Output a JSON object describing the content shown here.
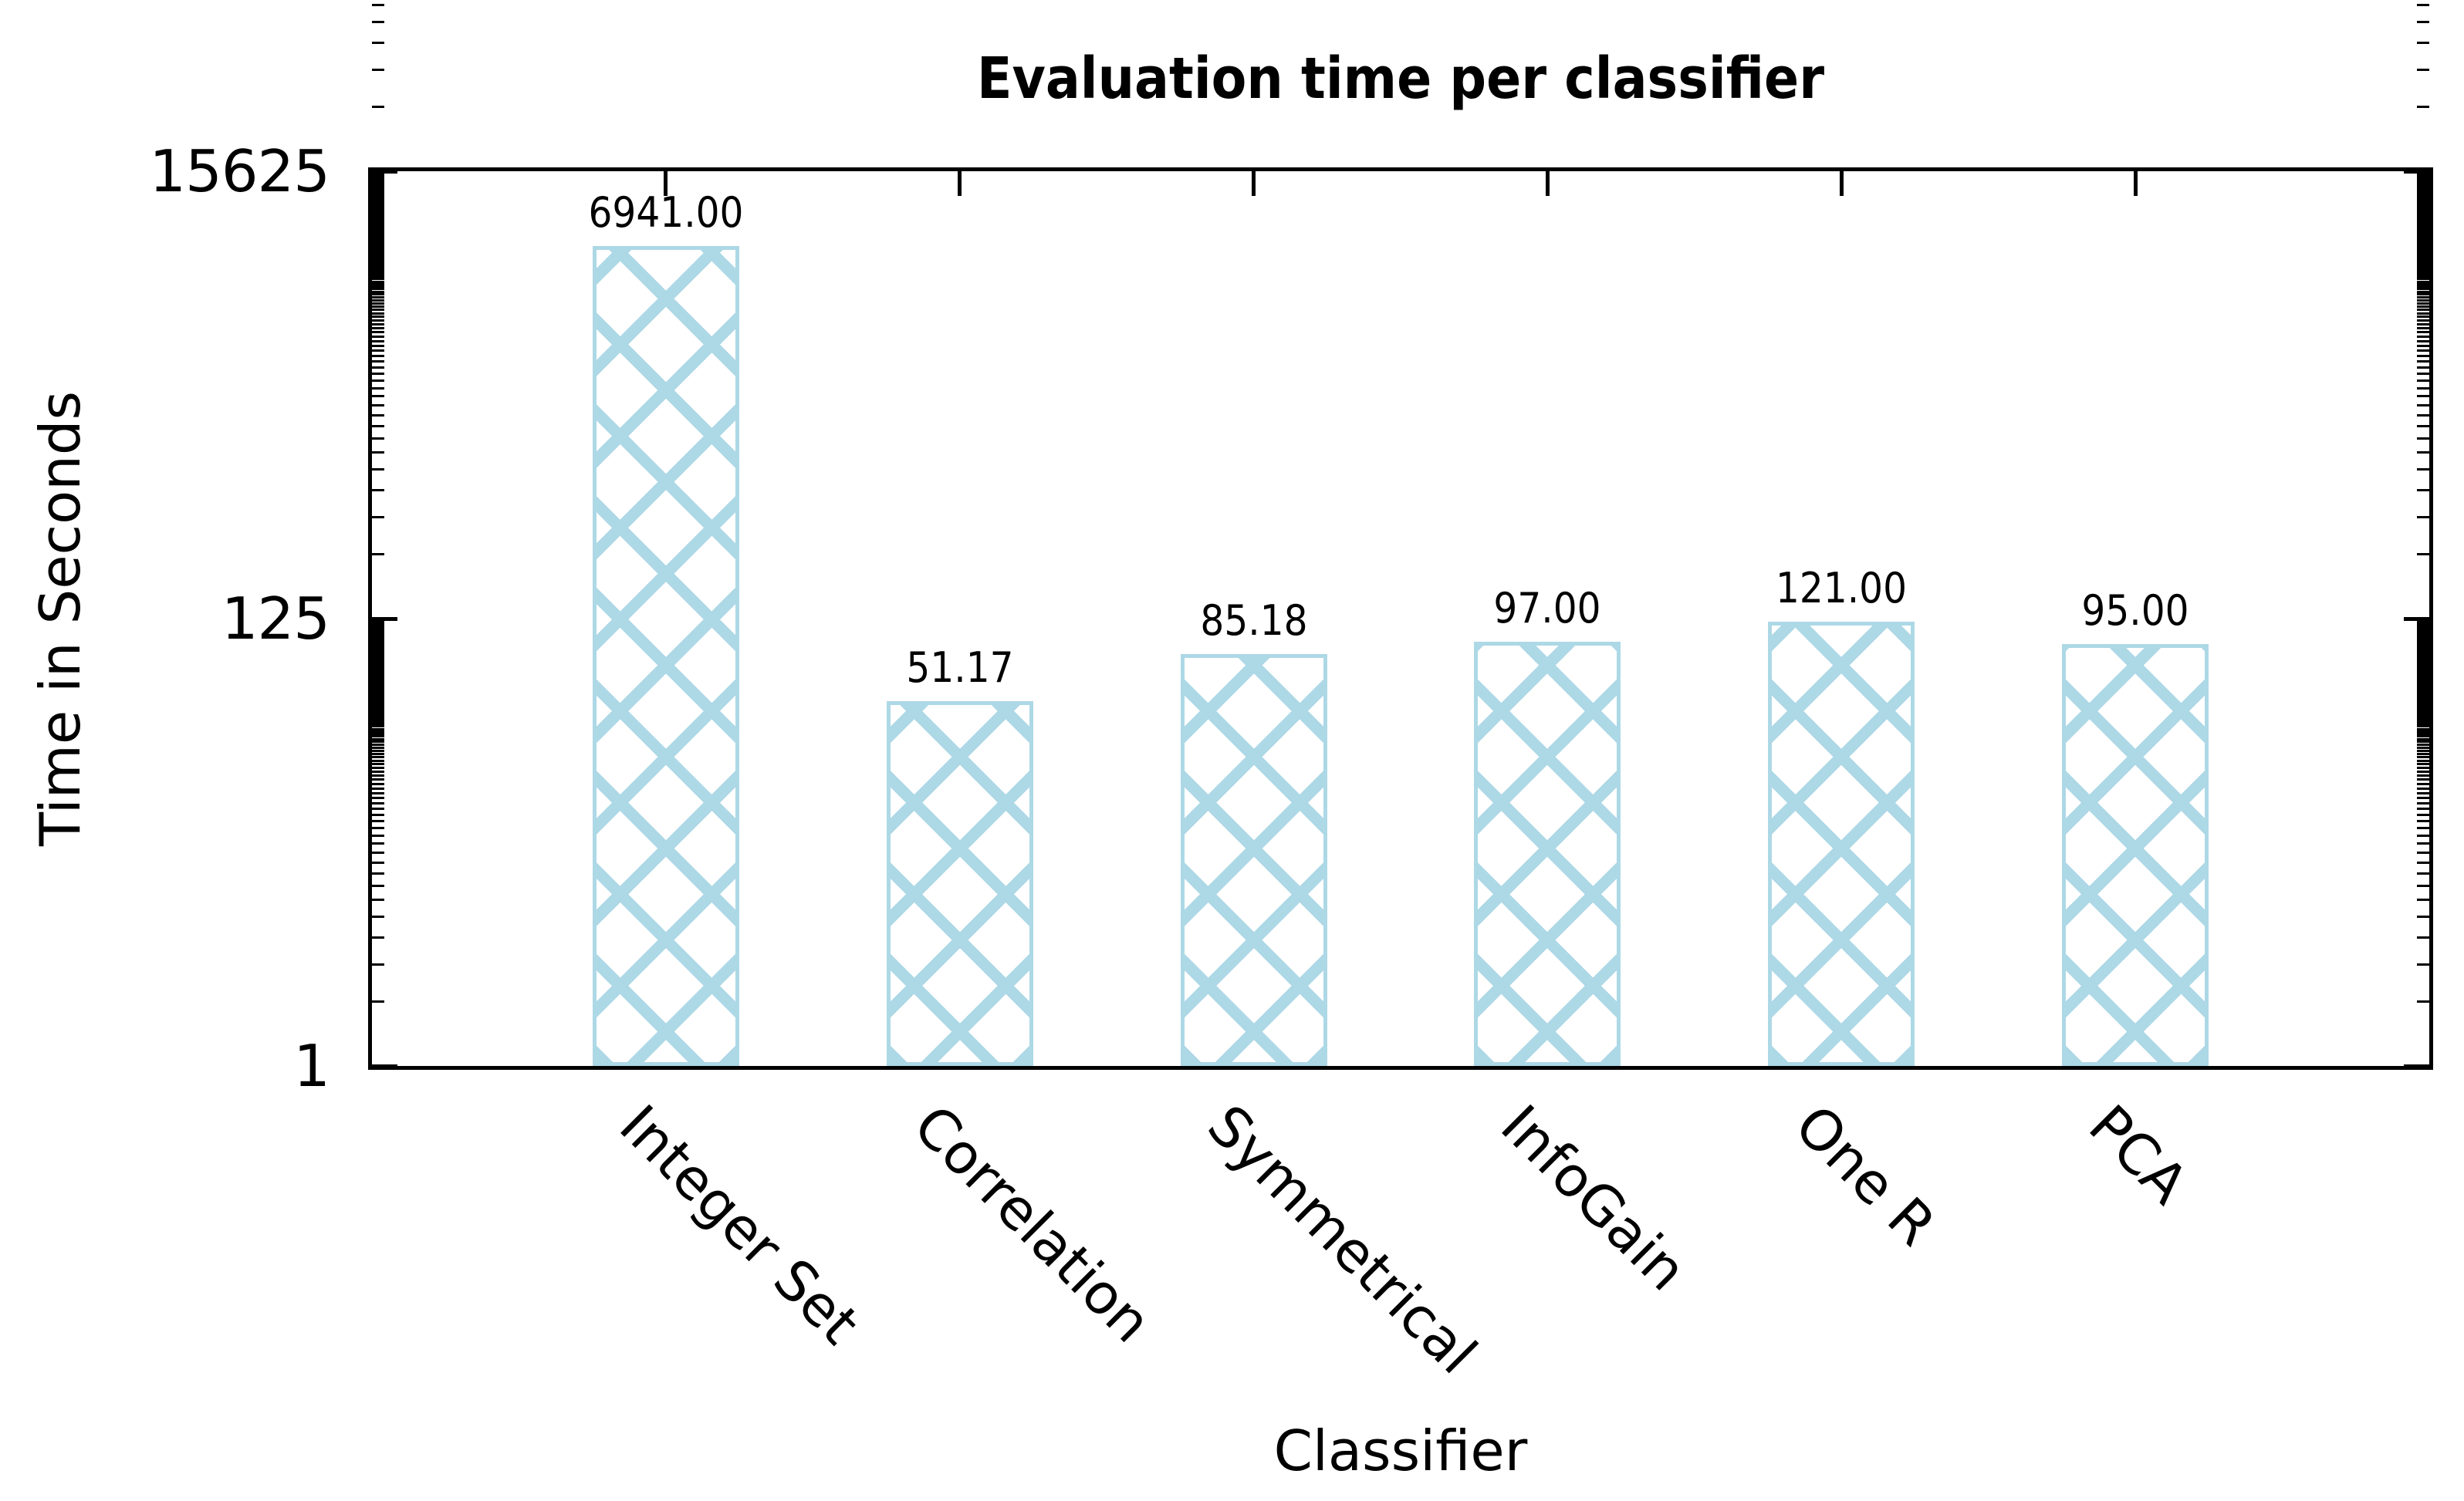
{
  "chart_data": {
    "type": "bar",
    "title": "Evaluation time per classifier",
    "xlabel": "Classifier",
    "ylabel": "Time in Seconds",
    "categories": [
      "Integer Set",
      "Correlation",
      "Symmetrical",
      "InfoGain",
      "One R",
      "PCA"
    ],
    "values": [
      6941.0,
      51.17,
      85.18,
      97.0,
      121.0,
      95.0
    ],
    "value_labels": [
      "6941.00",
      "51.17",
      "85.18",
      "97.00",
      "121.00",
      "95.00"
    ],
    "y_scale": "log",
    "log_base": 5,
    "ylim": [
      1,
      15625
    ],
    "y_ticks": [
      1,
      125,
      15625
    ],
    "y_tick_labels": [
      "1",
      "125",
      "15625"
    ],
    "grid": false,
    "legend": null,
    "colors": {
      "bar_fill": "#ffffff",
      "bar_hatch": "#ADD8E6",
      "bar_edge": "#ADD8E6",
      "axis": "#000000",
      "text": "#000000",
      "background": "#ffffff"
    },
    "hatch_pattern": "diagonal-crosshatch"
  }
}
